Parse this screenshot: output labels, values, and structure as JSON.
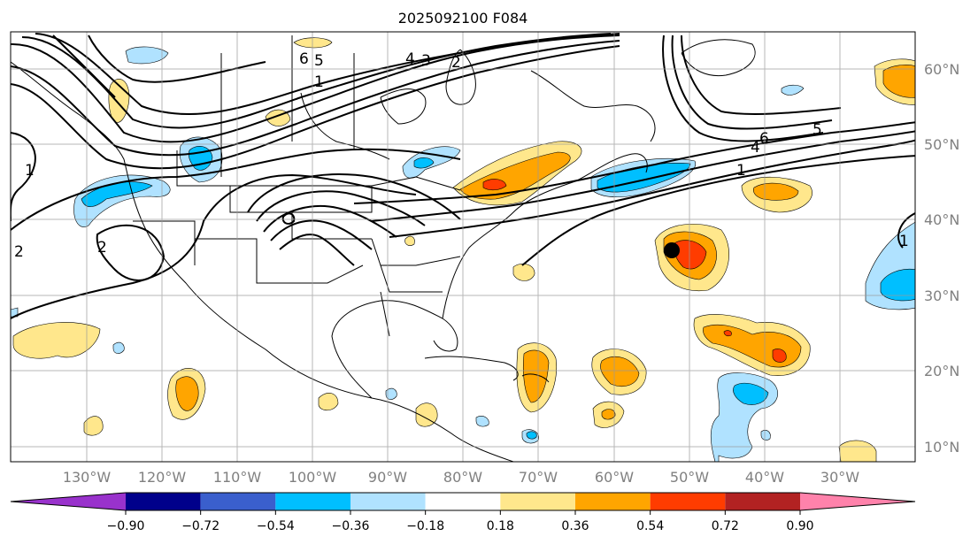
{
  "title": "2025092100 F084",
  "lat_labels": [
    "60°N",
    "50°N",
    "40°N",
    "30°N",
    "20°N",
    "10°N"
  ],
  "lon_labels": [
    "130°W",
    "120°W",
    "110°W",
    "100°W",
    "90°W",
    "80°W",
    "70°W",
    "60°W",
    "50°W",
    "40°W",
    "30°W"
  ],
  "contour_labels": [
    "6",
    "5",
    "4",
    "3",
    "2",
    "1",
    "1",
    "2",
    "2",
    "6",
    "5",
    "4",
    "1",
    "1"
  ],
  "colorbar": {
    "ticks": [
      "−0.90",
      "−0.72",
      "−0.54",
      "−0.36",
      "−0.18",
      "0.18",
      "0.36",
      "0.54",
      "0.72",
      "0.90"
    ],
    "colors": [
      "#9932cc",
      "#00008b",
      "#3a5fcd",
      "#00bfff",
      "#b0e2ff",
      "#ffffff",
      "#ffe78c",
      "#ffa500",
      "#ff3c00",
      "#b22222",
      "#ff82ab"
    ]
  },
  "marker_color": "#000000"
}
